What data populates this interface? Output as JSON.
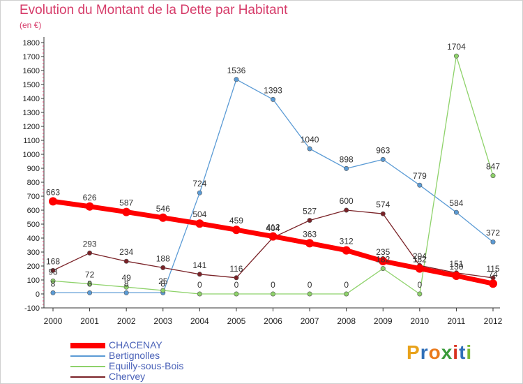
{
  "header": {
    "title": "Evolution du Montant de la Dette par Habitant",
    "subtitle": "(en €)"
  },
  "logo": {
    "letters": [
      "P",
      "r",
      "o",
      "x",
      "i",
      "t",
      "i"
    ],
    "colors": [
      "#e8a21b",
      "#2f6fb8",
      "#ea7a1c",
      "#3a9b3a",
      "#d8311f",
      "#2f6fb8",
      "#7bb934"
    ]
  },
  "chart_data": {
    "type": "line",
    "categories": [
      "2000",
      "2001",
      "2002",
      "2003",
      "2004",
      "2005",
      "2006",
      "2007",
      "2008",
      "2009",
      "2010",
      "2011",
      "2012"
    ],
    "ylim": [
      -100,
      1800
    ],
    "yticks": [
      -100,
      0,
      100,
      200,
      300,
      400,
      500,
      600,
      700,
      800,
      900,
      1000,
      1100,
      1200,
      1300,
      1400,
      1500,
      1600,
      1700,
      1800
    ],
    "grid": false,
    "legend": "bottom-left",
    "series": [
      {
        "name": "CHACENAY",
        "color": "#ff0000",
        "values": [
          663,
          626,
          587,
          546,
          504,
          459,
          412,
          363,
          312,
          235,
          182,
          130,
          74
        ]
      },
      {
        "name": "Bertignolles",
        "color": "#5b9bd5",
        "values": [
          8,
          8,
          8,
          8,
          724,
          1536,
          1393,
          1040,
          898,
          963,
          779,
          584,
          372
        ]
      },
      {
        "name": "Equilly-sous-Bois",
        "color": "#8ed26a",
        "values": [
          93,
          72,
          49,
          25,
          0,
          0,
          0,
          0,
          0,
          182,
          0,
          1704,
          847
        ]
      },
      {
        "name": "Chervey",
        "color": "#7a2227",
        "values": [
          168,
          293,
          234,
          188,
          141,
          116,
          404,
          527,
          600,
          574,
          204,
          151,
          115
        ]
      }
    ]
  }
}
